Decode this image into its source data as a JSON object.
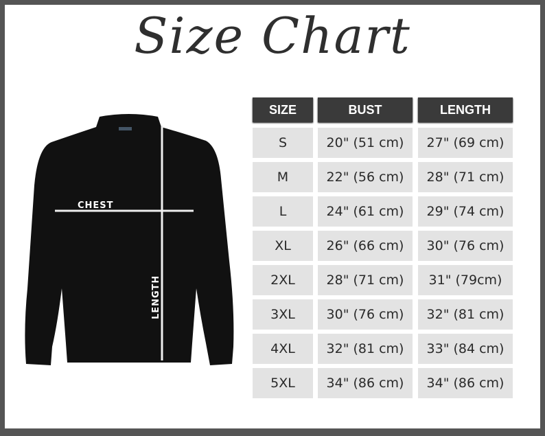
{
  "title": "Size Chart",
  "diagram": {
    "chest_label": "CHEST",
    "length_label": "LENGTH",
    "garment_color": "#111111"
  },
  "table": {
    "headers": [
      "SIZE",
      "BUST",
      "LENGTH"
    ],
    "rows": [
      [
        "S",
        "20\" (51 cm)",
        "27\" (69 cm)"
      ],
      [
        "M",
        "22\" (56 cm)",
        "28\" (71 cm)"
      ],
      [
        "L",
        "24\" (61 cm)",
        "29\" (74 cm)"
      ],
      [
        "XL",
        "26\" (66 cm)",
        "30\" (76 cm)"
      ],
      [
        "2XL",
        "28\" (71 cm)",
        "31\" (79cm)"
      ],
      [
        "3XL",
        "30\" (76 cm)",
        "32\" (81 cm)"
      ],
      [
        "4XL",
        "32\" (81 cm)",
        "33\" (84 cm)"
      ],
      [
        "5XL",
        "34\" (86 cm)",
        "34\" (86 cm)"
      ]
    ]
  }
}
